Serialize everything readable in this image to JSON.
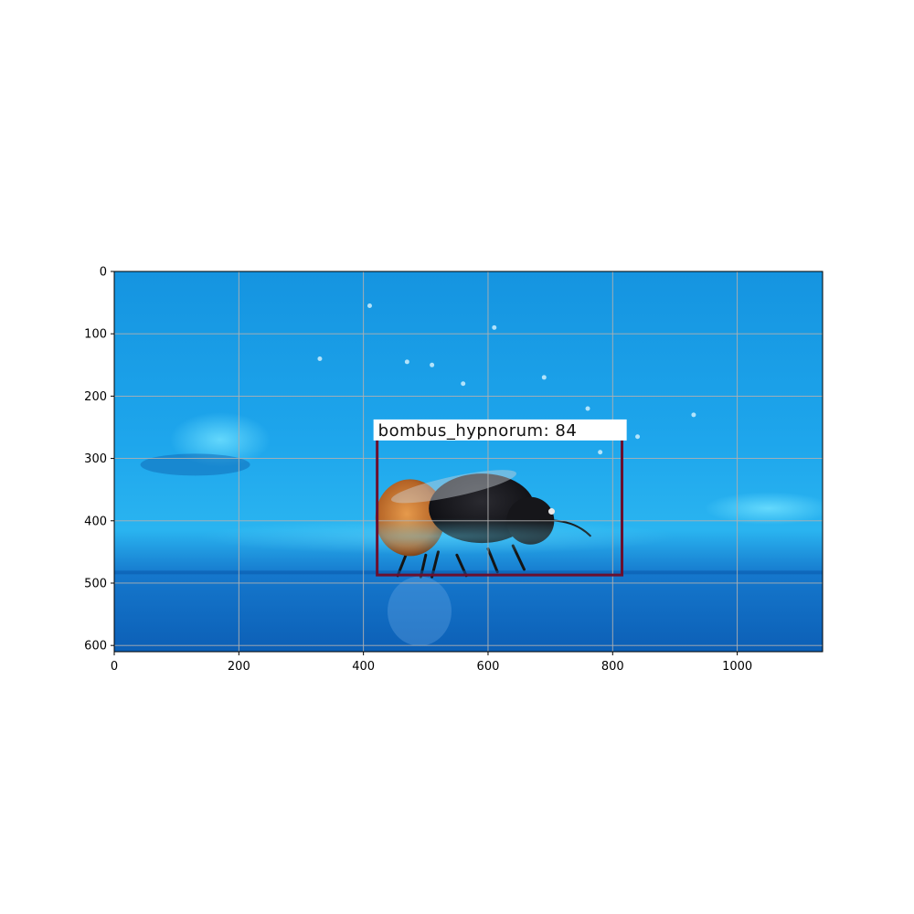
{
  "detection": {
    "label": "bombus_hypnorum: 84",
    "box": {
      "x_min": 422,
      "y_min": 255,
      "x_max": 815,
      "y_max": 487
    },
    "box_color": "#6b0f2e"
  },
  "axes": {
    "x_range": [
      0,
      1137
    ],
    "y_range": [
      610,
      0
    ],
    "x_ticks": [
      0,
      200,
      400,
      600,
      800,
      1000
    ],
    "y_ticks": [
      0,
      100,
      200,
      300,
      400,
      500,
      600
    ],
    "grid": true
  },
  "colors": {
    "water": "#1aa6ea",
    "water_deep": "#0f86d8",
    "surface": "#0d63b8",
    "bee_thorax": "#c4742c",
    "bee_abdomen": "#141418"
  }
}
